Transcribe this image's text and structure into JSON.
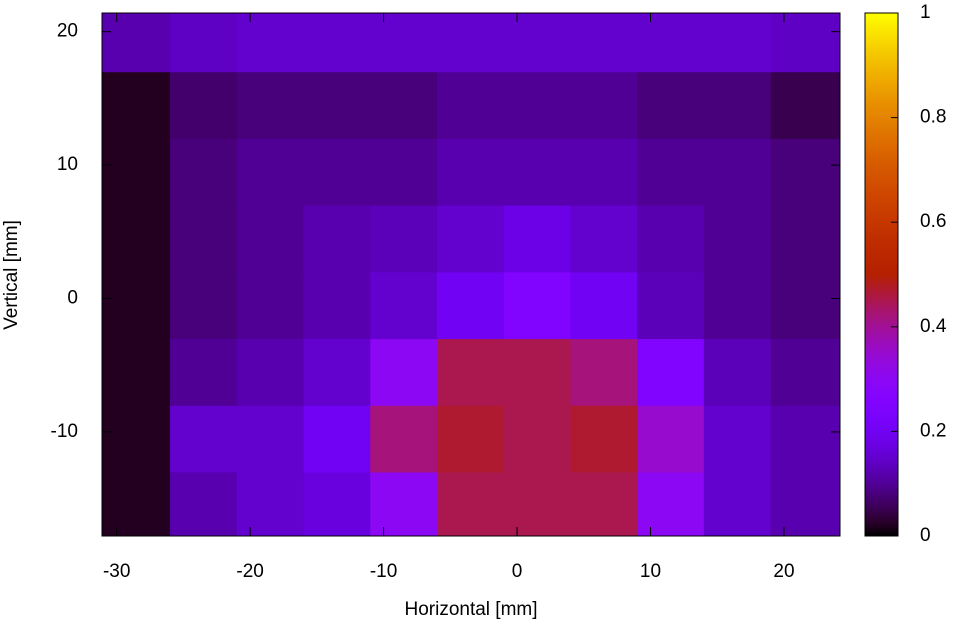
{
  "chart_data": {
    "type": "heatmap",
    "xlabel": "Horizontal [mm]",
    "ylabel": "Vertical [mm]",
    "xlim": [
      -31.1,
      24.2
    ],
    "ylim": [
      -17.8,
      21.4
    ],
    "xticks": [
      -30,
      -20,
      -10,
      0,
      10,
      20
    ],
    "yticks": [
      -10,
      0,
      10,
      20
    ],
    "clim": [
      0,
      1
    ],
    "cticks": [
      0,
      0.2,
      0.4,
      0.6,
      0.8,
      1
    ],
    "x_edges": [
      -31.1,
      -26,
      -21,
      -16,
      -11,
      -6,
      -1,
      4,
      9,
      14,
      19,
      24.2
    ],
    "y_edges": [
      -17.8,
      -13,
      -8,
      -3,
      2,
      7,
      12,
      17,
      21.4
    ],
    "z": [
      [
        0.02,
        0.12,
        0.15,
        0.17,
        0.3,
        0.45,
        0.45,
        0.45,
        0.3,
        0.15,
        0.12
      ],
      [
        0.02,
        0.15,
        0.15,
        0.2,
        0.42,
        0.47,
        0.45,
        0.47,
        0.35,
        0.15,
        0.12
      ],
      [
        0.02,
        0.1,
        0.12,
        0.15,
        0.3,
        0.45,
        0.45,
        0.42,
        0.25,
        0.13,
        0.1
      ],
      [
        0.02,
        0.08,
        0.1,
        0.12,
        0.15,
        0.2,
        0.25,
        0.2,
        0.13,
        0.1,
        0.08
      ],
      [
        0.02,
        0.08,
        0.1,
        0.12,
        0.13,
        0.15,
        0.18,
        0.15,
        0.12,
        0.1,
        0.08
      ],
      [
        0.02,
        0.08,
        0.1,
        0.1,
        0.1,
        0.12,
        0.12,
        0.12,
        0.1,
        0.1,
        0.08
      ],
      [
        0.02,
        0.07,
        0.08,
        0.08,
        0.08,
        0.1,
        0.1,
        0.1,
        0.08,
        0.08,
        0.05
      ],
      [
        0.12,
        0.14,
        0.15,
        0.15,
        0.15,
        0.15,
        0.15,
        0.15,
        0.15,
        0.15,
        0.14
      ]
    ]
  }
}
